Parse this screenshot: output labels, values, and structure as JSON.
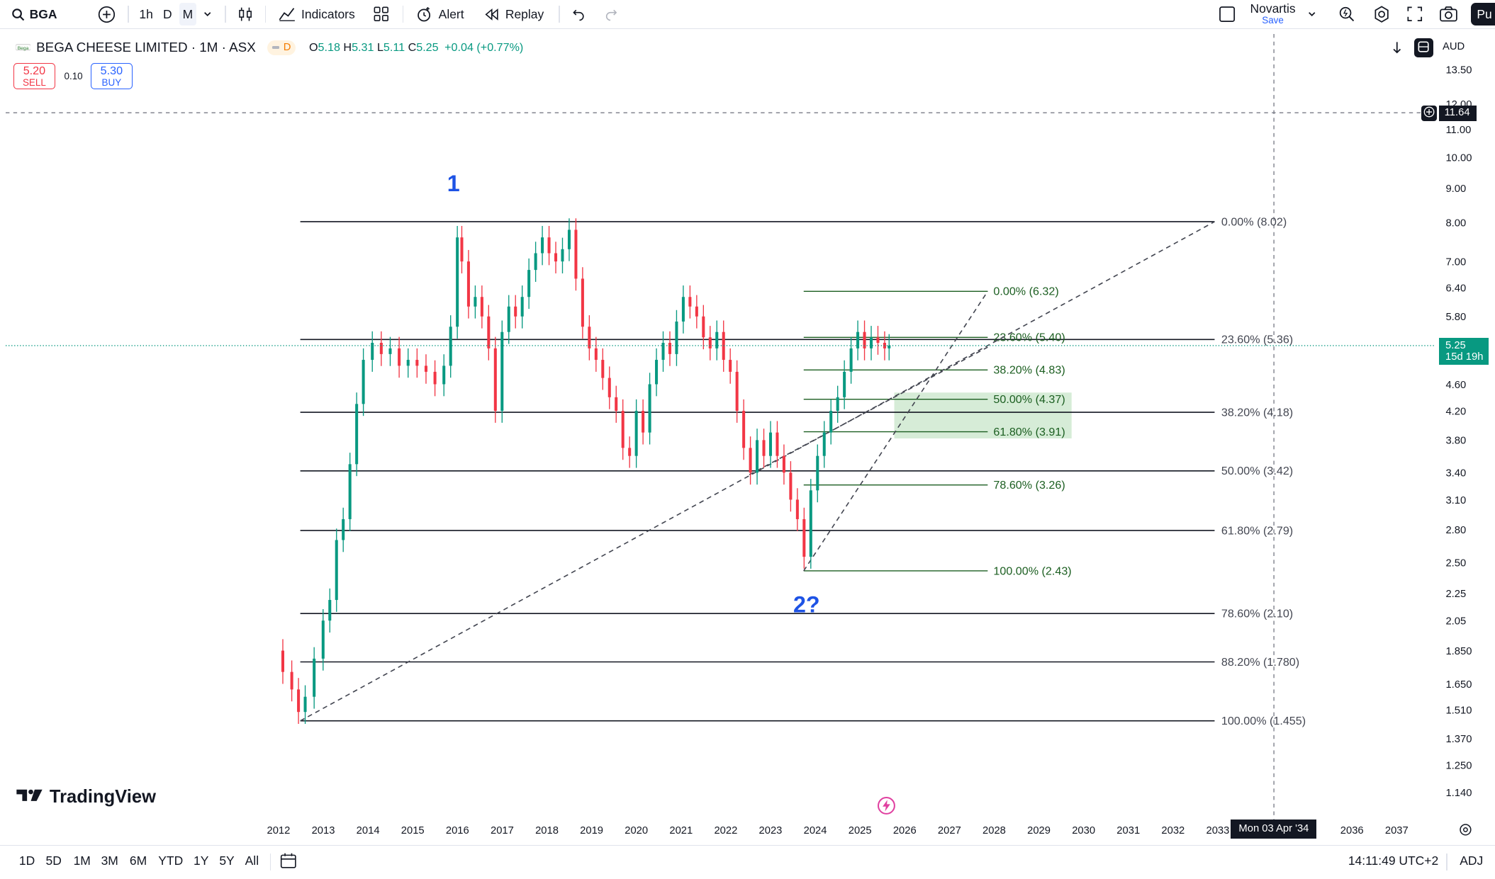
{
  "toolbar": {
    "symbol": "BGA",
    "intervals": [
      "1h",
      "D",
      "M"
    ],
    "active_interval": "M",
    "indicators_label": "Indicators",
    "alert_label": "Alert",
    "replay_label": "Replay",
    "layout_name": "Novartis",
    "layout_save": "Save",
    "publish_label": "Pu"
  },
  "legend": {
    "title": "BEGA CHEESE LIMITED · 1M · ASX",
    "badge": "D",
    "open_k": "O",
    "open": "5.18",
    "high_k": "H",
    "high": "5.31",
    "low_k": "L",
    "low": "5.11",
    "close_k": "C",
    "close": "5.25",
    "change": "+0.04 (+0.77%)"
  },
  "trade": {
    "sell_price": "5.20",
    "sell_label": "SELL",
    "spread": "0.10",
    "buy_price": "5.30",
    "buy_label": "BUY"
  },
  "price_scale": {
    "currency": "AUD",
    "ticks": [
      "13.50",
      "12.00",
      "11.00",
      "10.00",
      "9.00",
      "8.00",
      "7.00",
      "6.40",
      "5.80",
      "4.60",
      "4.20",
      "3.80",
      "3.40",
      "3.10",
      "2.80",
      "2.50",
      "2.25",
      "2.05",
      "1.850",
      "1.650",
      "1.510",
      "1.370",
      "1.250",
      "1.140"
    ],
    "crosshair_price": "11.64",
    "last_price": "5.25",
    "last_countdown": "15d 19h"
  },
  "time_scale": {
    "years": [
      "2012",
      "2013",
      "2014",
      "2015",
      "2016",
      "2017",
      "2018",
      "2019",
      "2020",
      "2021",
      "2022",
      "2023",
      "2024",
      "2025",
      "2026",
      "2027",
      "2028",
      "2029",
      "2030",
      "2031",
      "2032",
      "2033",
      "2036",
      "2037"
    ],
    "crosshair_date": "Mon 03 Apr '34"
  },
  "annotations": {
    "wave1": "1",
    "wave2": "2?"
  },
  "fib_big": {
    "levels": [
      {
        "label": "0.00% (8.02)",
        "price": 8.02
      },
      {
        "label": "23.60% (5.36)",
        "price": 5.36
      },
      {
        "label": "38.20% (4.18)",
        "price": 4.18
      },
      {
        "label": "50.00% (3.42)",
        "price": 3.42
      },
      {
        "label": "61.80% (2.79)",
        "price": 2.79
      },
      {
        "label": "78.60% (2.10)",
        "price": 2.1
      },
      {
        "label": "88.20% (1.780)",
        "price": 1.78
      },
      {
        "label": "100.00% (1.455)",
        "price": 1.455
      }
    ]
  },
  "fib_small": {
    "levels": [
      {
        "label": "0.00% (6.32)",
        "price": 6.32
      },
      {
        "label": "23.60% (5.40)",
        "price": 5.4
      },
      {
        "label": "38.20% (4.83)",
        "price": 4.83
      },
      {
        "label": "50.00% (4.37)",
        "price": 4.37
      },
      {
        "label": "61.80% (3.91)",
        "price": 3.91
      },
      {
        "label": "78.60% (3.26)",
        "price": 3.26
      },
      {
        "label": "100.00% (2.43)",
        "price": 2.43
      }
    ]
  },
  "colors": {
    "up": "#089981",
    "down": "#f23645",
    "wave_label": "#1e53e5",
    "zone": "#c8e6c9",
    "fib_line": "#131722",
    "fib_small_line": "#1b5e20"
  },
  "watermark": "TradingView",
  "bottom": {
    "ranges": [
      "1D",
      "5D",
      "1M",
      "3M",
      "6M",
      "YTD",
      "1Y",
      "5Y",
      "All"
    ],
    "clock": "14:11:49 UTC+2",
    "adj": "ADJ"
  }
}
